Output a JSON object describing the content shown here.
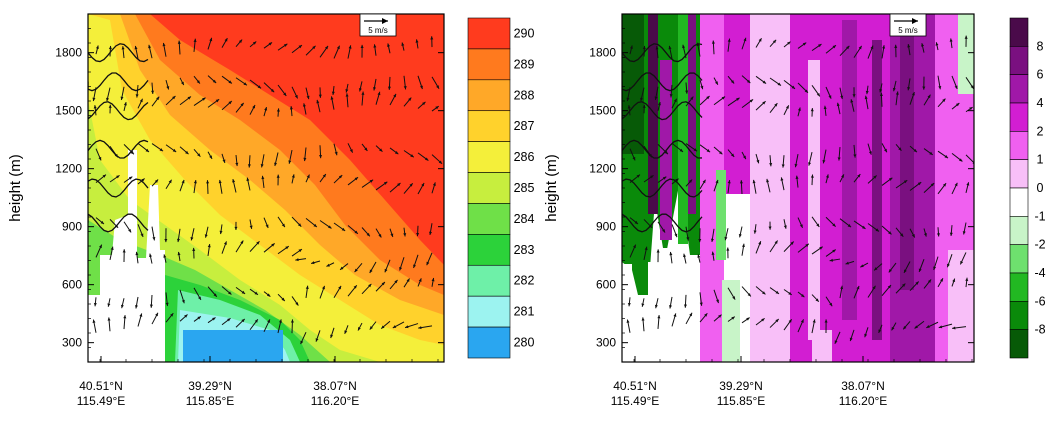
{
  "chart_data": [
    {
      "type": "heatmap",
      "panel": "left",
      "ylabel": "height (m)",
      "yticks": [
        300,
        600,
        900,
        1200,
        1500,
        1800
      ],
      "ylim": [
        200,
        2000
      ],
      "xtick_labels": [
        {
          "lat": "40.51°N",
          "lon": "115.49°E"
        },
        {
          "lat": "39.29°N",
          "lon": "115.85°E"
        },
        {
          "lat": "38.07°N",
          "lon": "116.20°E"
        }
      ],
      "vector_ref_label": "5 m/s",
      "colorbar": {
        "labels": [
          "290",
          "289",
          "288",
          "287",
          "286",
          "285",
          "284",
          "283",
          "282",
          "281",
          "280"
        ],
        "colors": [
          "#ff3b1e",
          "#ff7a1e",
          "#ffa828",
          "#ffd22c",
          "#f4ef3a",
          "#c7ee3e",
          "#6fe048",
          "#2cd23a",
          "#6ef0a8",
          "#9cf3f0",
          "#2aa6f0"
        ]
      },
      "grid": false
    },
    {
      "type": "heatmap",
      "panel": "right",
      "ylabel": "height (m)",
      "yticks": [
        300,
        600,
        900,
        1200,
        1500,
        1800
      ],
      "ylim": [
        200,
        2000
      ],
      "xtick_labels": [
        {
          "lat": "40.51°N",
          "lon": "115.49°E"
        },
        {
          "lat": "39.29°N",
          "lon": "115.85°E"
        },
        {
          "lat": "38.07°N",
          "lon": "116.20°E"
        }
      ],
      "vector_ref_label": "5 m/s",
      "colorbar": {
        "labels": [
          "8",
          "6",
          "4",
          "2",
          "1",
          "0",
          "-1",
          "-2",
          "-4",
          "-6",
          "-8"
        ],
        "colors": [
          "#4a0a4a",
          "#7a1080",
          "#a018a8",
          "#d21ed2",
          "#f060f0",
          "#f8bff8",
          "#ffffff",
          "#c8f4c8",
          "#6ee06e",
          "#22b822",
          "#0a8a0a",
          "#075a07"
        ]
      },
      "grid": false
    }
  ]
}
